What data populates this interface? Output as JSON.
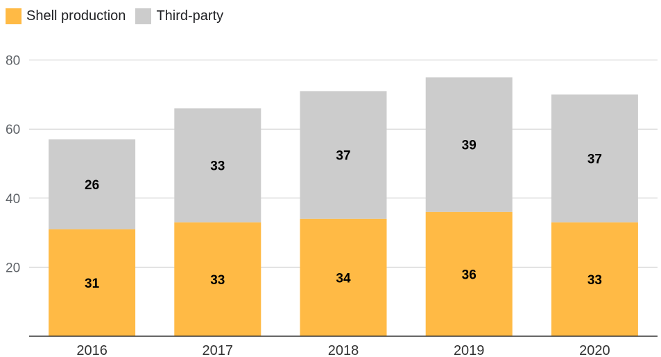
{
  "chart_data": {
    "type": "bar",
    "stacked": true,
    "categories": [
      "2016",
      "2017",
      "2018",
      "2019",
      "2020"
    ],
    "series": [
      {
        "name": "Shell production",
        "color": "#FFBA45",
        "values": [
          31,
          33,
          34,
          36,
          33
        ]
      },
      {
        "name": "Third-party",
        "color": "#CCCCCC",
        "values": [
          26,
          33,
          37,
          39,
          37
        ]
      }
    ],
    "yticks": [
      20,
      40,
      60,
      80
    ],
    "ylim": [
      0,
      80
    ],
    "grid": true,
    "legend_position": "top-left",
    "title": "",
    "xlabel": "",
    "ylabel": ""
  }
}
